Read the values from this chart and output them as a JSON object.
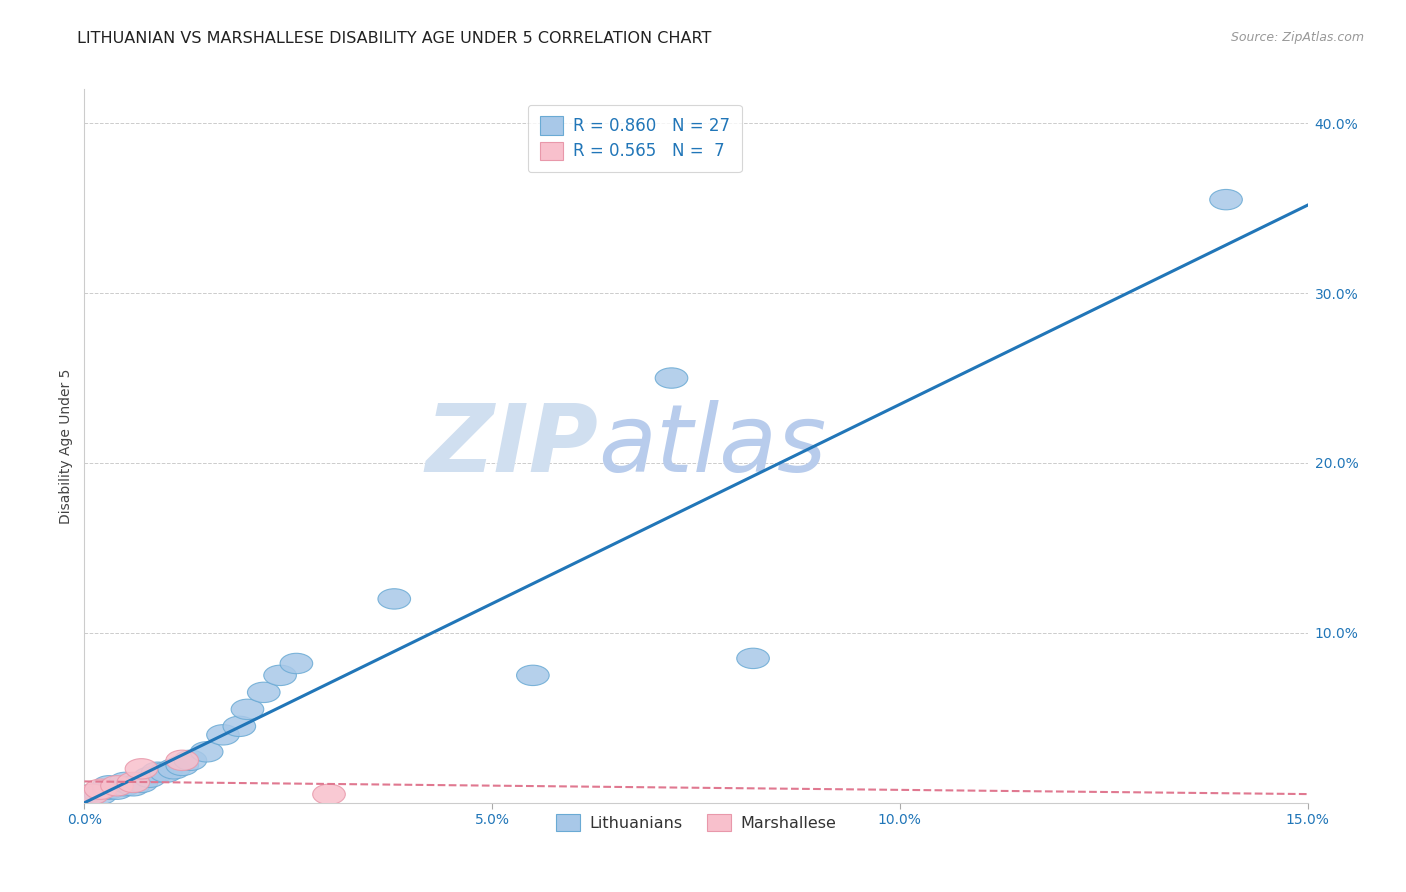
{
  "title": "LITHUANIAN VS MARSHALLESE DISABILITY AGE UNDER 5 CORRELATION CHART",
  "source": "Source: ZipAtlas.com",
  "ylabel": "Disability Age Under 5",
  "xlim": [
    0.0,
    0.15
  ],
  "ylim": [
    0.0,
    0.42
  ],
  "xticks": [
    0.0,
    0.05,
    0.1,
    0.15
  ],
  "xtick_labels": [
    "0.0%",
    "5.0%",
    "10.0%",
    "15.0%"
  ],
  "yticks_right": [
    0.1,
    0.2,
    0.3,
    0.4
  ],
  "ytick_labels_right": [
    "10.0%",
    "20.0%",
    "30.0%",
    "40.0%"
  ],
  "blue_points_x": [
    0.001,
    0.002,
    0.003,
    0.003,
    0.004,
    0.005,
    0.005,
    0.006,
    0.007,
    0.008,
    0.009,
    0.01,
    0.011,
    0.012,
    0.013,
    0.015,
    0.017,
    0.019,
    0.02,
    0.022,
    0.024,
    0.026,
    0.038,
    0.055,
    0.072,
    0.082,
    0.14
  ],
  "blue_points_y": [
    0.005,
    0.005,
    0.008,
    0.01,
    0.008,
    0.01,
    0.012,
    0.01,
    0.012,
    0.015,
    0.018,
    0.018,
    0.02,
    0.022,
    0.025,
    0.03,
    0.04,
    0.045,
    0.055,
    0.065,
    0.075,
    0.082,
    0.12,
    0.075,
    0.25,
    0.085,
    0.355
  ],
  "pink_points_x": [
    0.001,
    0.002,
    0.004,
    0.006,
    0.007,
    0.012,
    0.03
  ],
  "pink_points_y": [
    0.005,
    0.008,
    0.01,
    0.012,
    0.02,
    0.025,
    0.005
  ],
  "blue_color": "#a8c8e8",
  "blue_edge_color": "#6aaad4",
  "blue_line_color": "#2176b8",
  "pink_color": "#f8c0cc",
  "pink_edge_color": "#e898aa",
  "pink_line_color": "#e07890",
  "background_color": "#ffffff",
  "grid_color": "#cccccc",
  "R_blue": 0.86,
  "N_blue": 27,
  "R_pink": 0.565,
  "N_pink": 7,
  "title_fontsize": 11.5,
  "axis_label_fontsize": 10,
  "tick_fontsize": 10,
  "watermark_zip": "ZIP",
  "watermark_atlas": "atlas",
  "watermark_color_zip": "#d0dff0",
  "watermark_color_atlas": "#b8ccec",
  "legend_label_blue": "Lithuanians",
  "legend_label_pink": "Marshallese"
}
